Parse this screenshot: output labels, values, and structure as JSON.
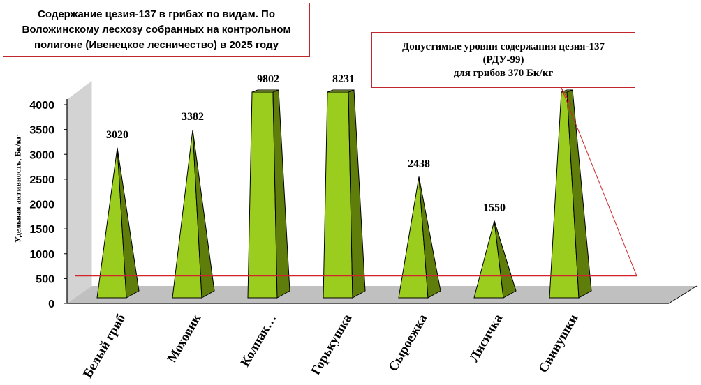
{
  "chart_data": {
    "type": "bar",
    "title": "Содержание цезия-137 в грибах по видам. По Воложинскому лесхозу собранных на контрольном полигоне (Ивенецкое лесничество) в 2025 году",
    "ylabel": "Удельная активность, Бк/кг",
    "xlabel": "",
    "ylim": [
      0,
      4000
    ],
    "yticks": [
      0,
      500,
      1000,
      1500,
      2000,
      2500,
      3000,
      3500,
      4000
    ],
    "categories": [
      "Белый гриб",
      "Моховик",
      "Колпак…",
      "Горькушка",
      "Сыроежка",
      "Лисичка",
      "Свинушки"
    ],
    "values": [
      3020,
      3382,
      9802,
      8231,
      2438,
      1550,
      4200
    ],
    "data_labels": [
      "3020",
      "3382",
      "9802",
      "8231",
      "2438",
      "1550",
      ""
    ],
    "grid": false,
    "legend": "none",
    "bar_color": "#9acd1e",
    "bar_side_color": "#5e7d0a",
    "floor_color": "#c0c0c0",
    "reference_line": {
      "value": 370,
      "color": "#d0262b"
    },
    "annotation": "Допустимые уровни содержания цезия-137\n(РДУ-99)\nдля грибов 370 Бк/кг"
  }
}
